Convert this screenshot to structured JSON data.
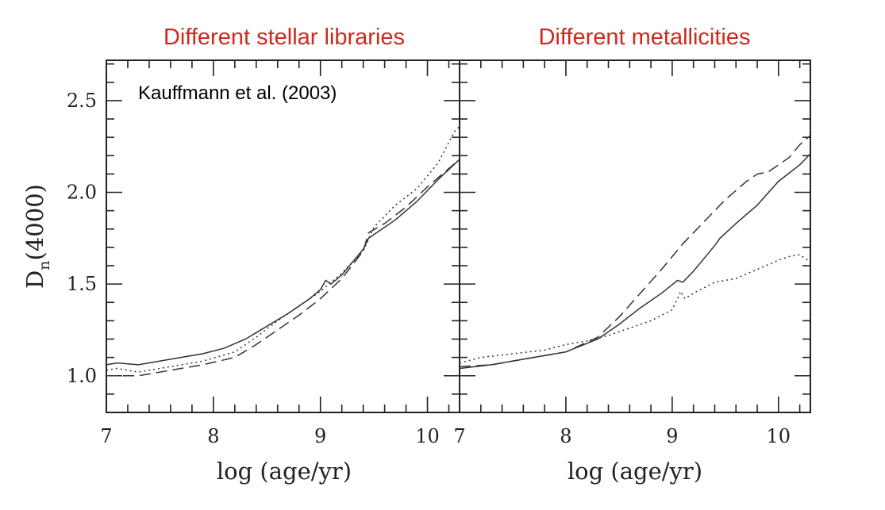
{
  "chart_data": [
    {
      "type": "line",
      "title": "Different stellar libraries",
      "annotation": "Kauffmann et al. (2003)",
      "xlabel": "log (age/yr)",
      "ylabel": "D_n(4000)",
      "ylabel_main": "D",
      "ylabel_sub": "n",
      "ylabel_rest": "(4000)",
      "xlim": [
        7.0,
        10.3
      ],
      "ylim": [
        0.8,
        2.72
      ],
      "xticks": [
        7,
        8,
        9,
        10
      ],
      "xtick_labels": [
        "7",
        "8",
        "9",
        "10"
      ],
      "yticks": [
        1.0,
        1.5,
        2.0,
        2.5
      ],
      "ytick_labels": [
        "1.0",
        "1.5",
        "2.0",
        "2.5"
      ],
      "legend": "none",
      "series": [
        {
          "style": "solid",
          "x": [
            7.0,
            7.1,
            7.3,
            7.6,
            7.9,
            8.1,
            8.3,
            8.5,
            8.7,
            8.9,
            9.0,
            9.05,
            9.1,
            9.2,
            9.3,
            9.4,
            9.45,
            9.5,
            9.7,
            9.9,
            10.1,
            10.3
          ],
          "y": [
            1.06,
            1.07,
            1.06,
            1.09,
            1.12,
            1.15,
            1.2,
            1.27,
            1.34,
            1.42,
            1.47,
            1.52,
            1.5,
            1.55,
            1.62,
            1.69,
            1.75,
            1.77,
            1.85,
            1.95,
            2.07,
            2.18
          ]
        },
        {
          "style": "dashed",
          "x": [
            7.0,
            7.3,
            7.6,
            7.9,
            8.2,
            8.4,
            8.6,
            8.8,
            9.0,
            9.2,
            9.4,
            9.45,
            9.6,
            9.8,
            10.0,
            10.2,
            10.3
          ],
          "y": [
            1.0,
            1.0,
            1.03,
            1.06,
            1.1,
            1.17,
            1.25,
            1.33,
            1.42,
            1.53,
            1.68,
            1.78,
            1.83,
            1.92,
            2.03,
            2.13,
            2.18
          ]
        },
        {
          "style": "dotted",
          "x": [
            7.0,
            7.1,
            7.3,
            7.6,
            7.9,
            8.2,
            8.4,
            8.6,
            8.8,
            9.0,
            9.2,
            9.4,
            9.5,
            9.7,
            9.9,
            10.1,
            10.25,
            10.3
          ],
          "y": [
            1.03,
            1.04,
            1.02,
            1.05,
            1.08,
            1.13,
            1.21,
            1.3,
            1.38,
            1.46,
            1.56,
            1.68,
            1.81,
            1.93,
            2.02,
            2.16,
            2.33,
            2.36
          ]
        }
      ]
    },
    {
      "type": "line",
      "title": "Different metallicities",
      "xlabel": "log (age/yr)",
      "xlim": [
        7.0,
        10.3
      ],
      "ylim": [
        0.8,
        2.72
      ],
      "xticks": [
        7,
        8,
        9,
        10
      ],
      "xtick_labels": [
        "7",
        "8",
        "9",
        "10"
      ],
      "yticks": [
        1.0,
        1.5,
        2.0,
        2.5
      ],
      "legend": "none",
      "series": [
        {
          "style": "solid",
          "x": [
            7.0,
            7.3,
            7.6,
            8.0,
            8.3,
            8.5,
            8.7,
            8.9,
            9.05,
            9.1,
            9.2,
            9.3,
            9.4,
            9.45,
            9.6,
            9.8,
            10.0,
            10.2,
            10.3
          ],
          "y": [
            1.04,
            1.06,
            1.09,
            1.13,
            1.2,
            1.28,
            1.37,
            1.45,
            1.52,
            1.51,
            1.57,
            1.64,
            1.71,
            1.75,
            1.83,
            1.93,
            2.06,
            2.15,
            2.21
          ]
        },
        {
          "style": "dashed",
          "x": [
            7.0,
            7.3,
            7.6,
            8.0,
            8.3,
            8.5,
            8.7,
            8.9,
            9.1,
            9.3,
            9.5,
            9.7,
            9.8,
            9.9,
            10.1,
            10.2,
            10.3
          ],
          "y": [
            1.05,
            1.06,
            1.09,
            1.13,
            1.21,
            1.32,
            1.45,
            1.58,
            1.72,
            1.84,
            1.96,
            2.06,
            2.1,
            2.11,
            2.19,
            2.26,
            2.31
          ]
        },
        {
          "style": "dotted",
          "x": [
            7.0,
            7.2,
            7.5,
            7.8,
            8.0,
            8.2,
            8.4,
            8.6,
            8.8,
            9.0,
            9.05,
            9.08,
            9.12,
            9.2,
            9.4,
            9.6,
            9.8,
            10.0,
            10.1,
            10.2,
            10.3
          ],
          "y": [
            1.07,
            1.1,
            1.12,
            1.14,
            1.17,
            1.19,
            1.22,
            1.26,
            1.3,
            1.36,
            1.42,
            1.46,
            1.42,
            1.45,
            1.51,
            1.53,
            1.58,
            1.63,
            1.65,
            1.66,
            1.62
          ]
        }
      ]
    }
  ]
}
